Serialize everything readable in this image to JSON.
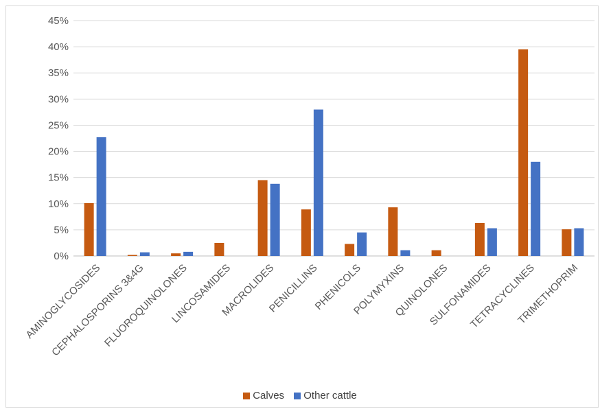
{
  "chart_data": {
    "type": "bar",
    "categories": [
      "AMINOGLYCOSIDES",
      "CEPHALOSPORINS 3&4G",
      "FLUOROQUINOLONES",
      "LINCOSAMIDES",
      "MACROLIDES",
      "PENICILLINS",
      "PHENICOLS",
      "POLYMYXINS",
      "QUINOLONES",
      "SULFONAMIDES",
      "TETRACYCLINES",
      "TRIMETHOPRIM"
    ],
    "series": [
      {
        "name": "Calves",
        "color": "#c55a11",
        "values": [
          10.1,
          0.2,
          0.5,
          2.5,
          14.5,
          8.9,
          2.3,
          9.3,
          1.1,
          6.3,
          39.5,
          5.1
        ]
      },
      {
        "name": "Other cattle",
        "color": "#4472c4",
        "values": [
          22.7,
          0.7,
          0.8,
          0,
          13.8,
          28.0,
          4.5,
          1.1,
          0,
          5.3,
          18.0,
          5.3
        ]
      }
    ],
    "ylim": [
      0,
      45
    ],
    "yticks": [
      "0%",
      "5%",
      "10%",
      "15%",
      "20%",
      "25%",
      "30%",
      "35%",
      "40%",
      "45%"
    ],
    "grid": true,
    "legend_position": "bottom"
  }
}
